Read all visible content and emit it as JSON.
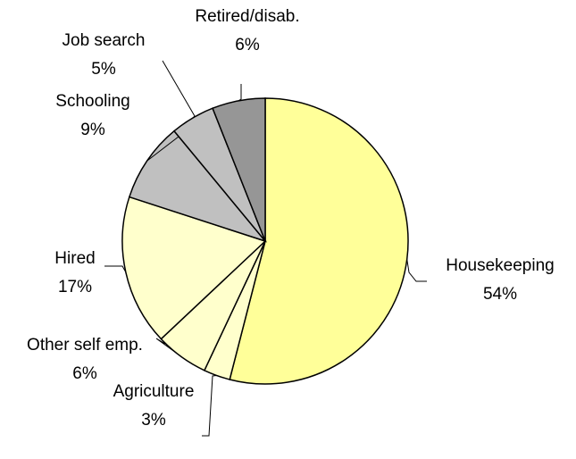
{
  "chart_data": {
    "type": "pie",
    "title": "",
    "start_angle_deg": 0,
    "direction": "clockwise",
    "slices": [
      {
        "name": "Housekeeping",
        "value": 54,
        "label": "54%",
        "color": "#ffff99"
      },
      {
        "name": "Agriculture",
        "value": 3,
        "label": "3%",
        "color": "#ffffcc"
      },
      {
        "name": "Other self emp.",
        "value": 6,
        "label": "6%",
        "color": "#ffffcc"
      },
      {
        "name": "Hired",
        "value": 17,
        "label": "17%",
        "color": "#ffffcc"
      },
      {
        "name": "Schooling",
        "value": 9,
        "label": "9%",
        "color": "#c0c0c0"
      },
      {
        "name": "Job search",
        "value": 5,
        "label": "5%",
        "color": "#c0c0c0"
      },
      {
        "name": "Retired/disab.",
        "value": 6,
        "label": "6%",
        "color": "#969696"
      }
    ]
  }
}
